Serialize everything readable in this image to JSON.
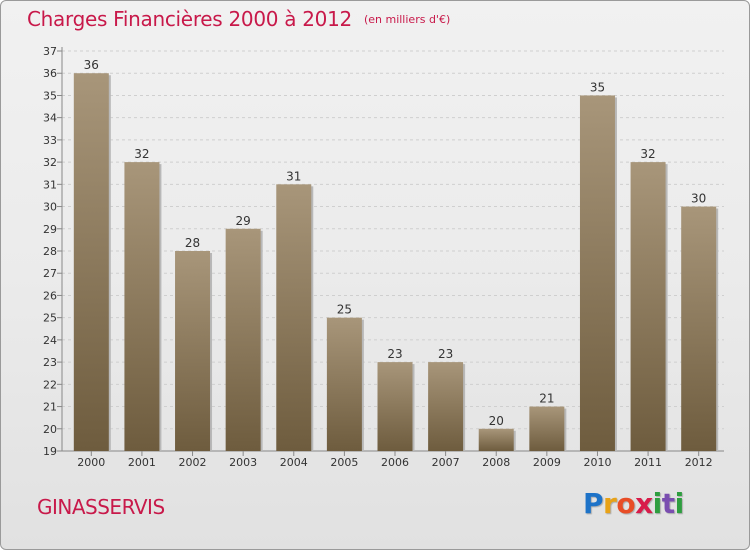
{
  "header": {
    "title": "Charges Financières 2000 à 2012",
    "subtitle": "(en milliers d'€)"
  },
  "footer": {
    "commune": "GINASSERVIS",
    "brand": "Proxiti"
  },
  "colors": {
    "title": "#c8194a",
    "bar_light": "#a8967a",
    "bar_dark": "#6e5c3e"
  },
  "chart_data": {
    "type": "bar",
    "title": "Charges Financières 2000 à 2012",
    "subtitle": "(en milliers d'€)",
    "xlabel": "",
    "ylabel": "",
    "categories": [
      "2000",
      "2001",
      "2002",
      "2003",
      "2004",
      "2005",
      "2006",
      "2007",
      "2008",
      "2009",
      "2010",
      "2011",
      "2012"
    ],
    "values": [
      36,
      32,
      28,
      29,
      31,
      25,
      23,
      23,
      20,
      21,
      35,
      32,
      30
    ],
    "ylim": [
      19,
      37
    ],
    "yticks": [
      19,
      20,
      21,
      22,
      23,
      24,
      25,
      26,
      27,
      28,
      29,
      30,
      31,
      32,
      33,
      34,
      35,
      36,
      37
    ],
    "grid": true,
    "data_labels": true,
    "legend": "none"
  }
}
